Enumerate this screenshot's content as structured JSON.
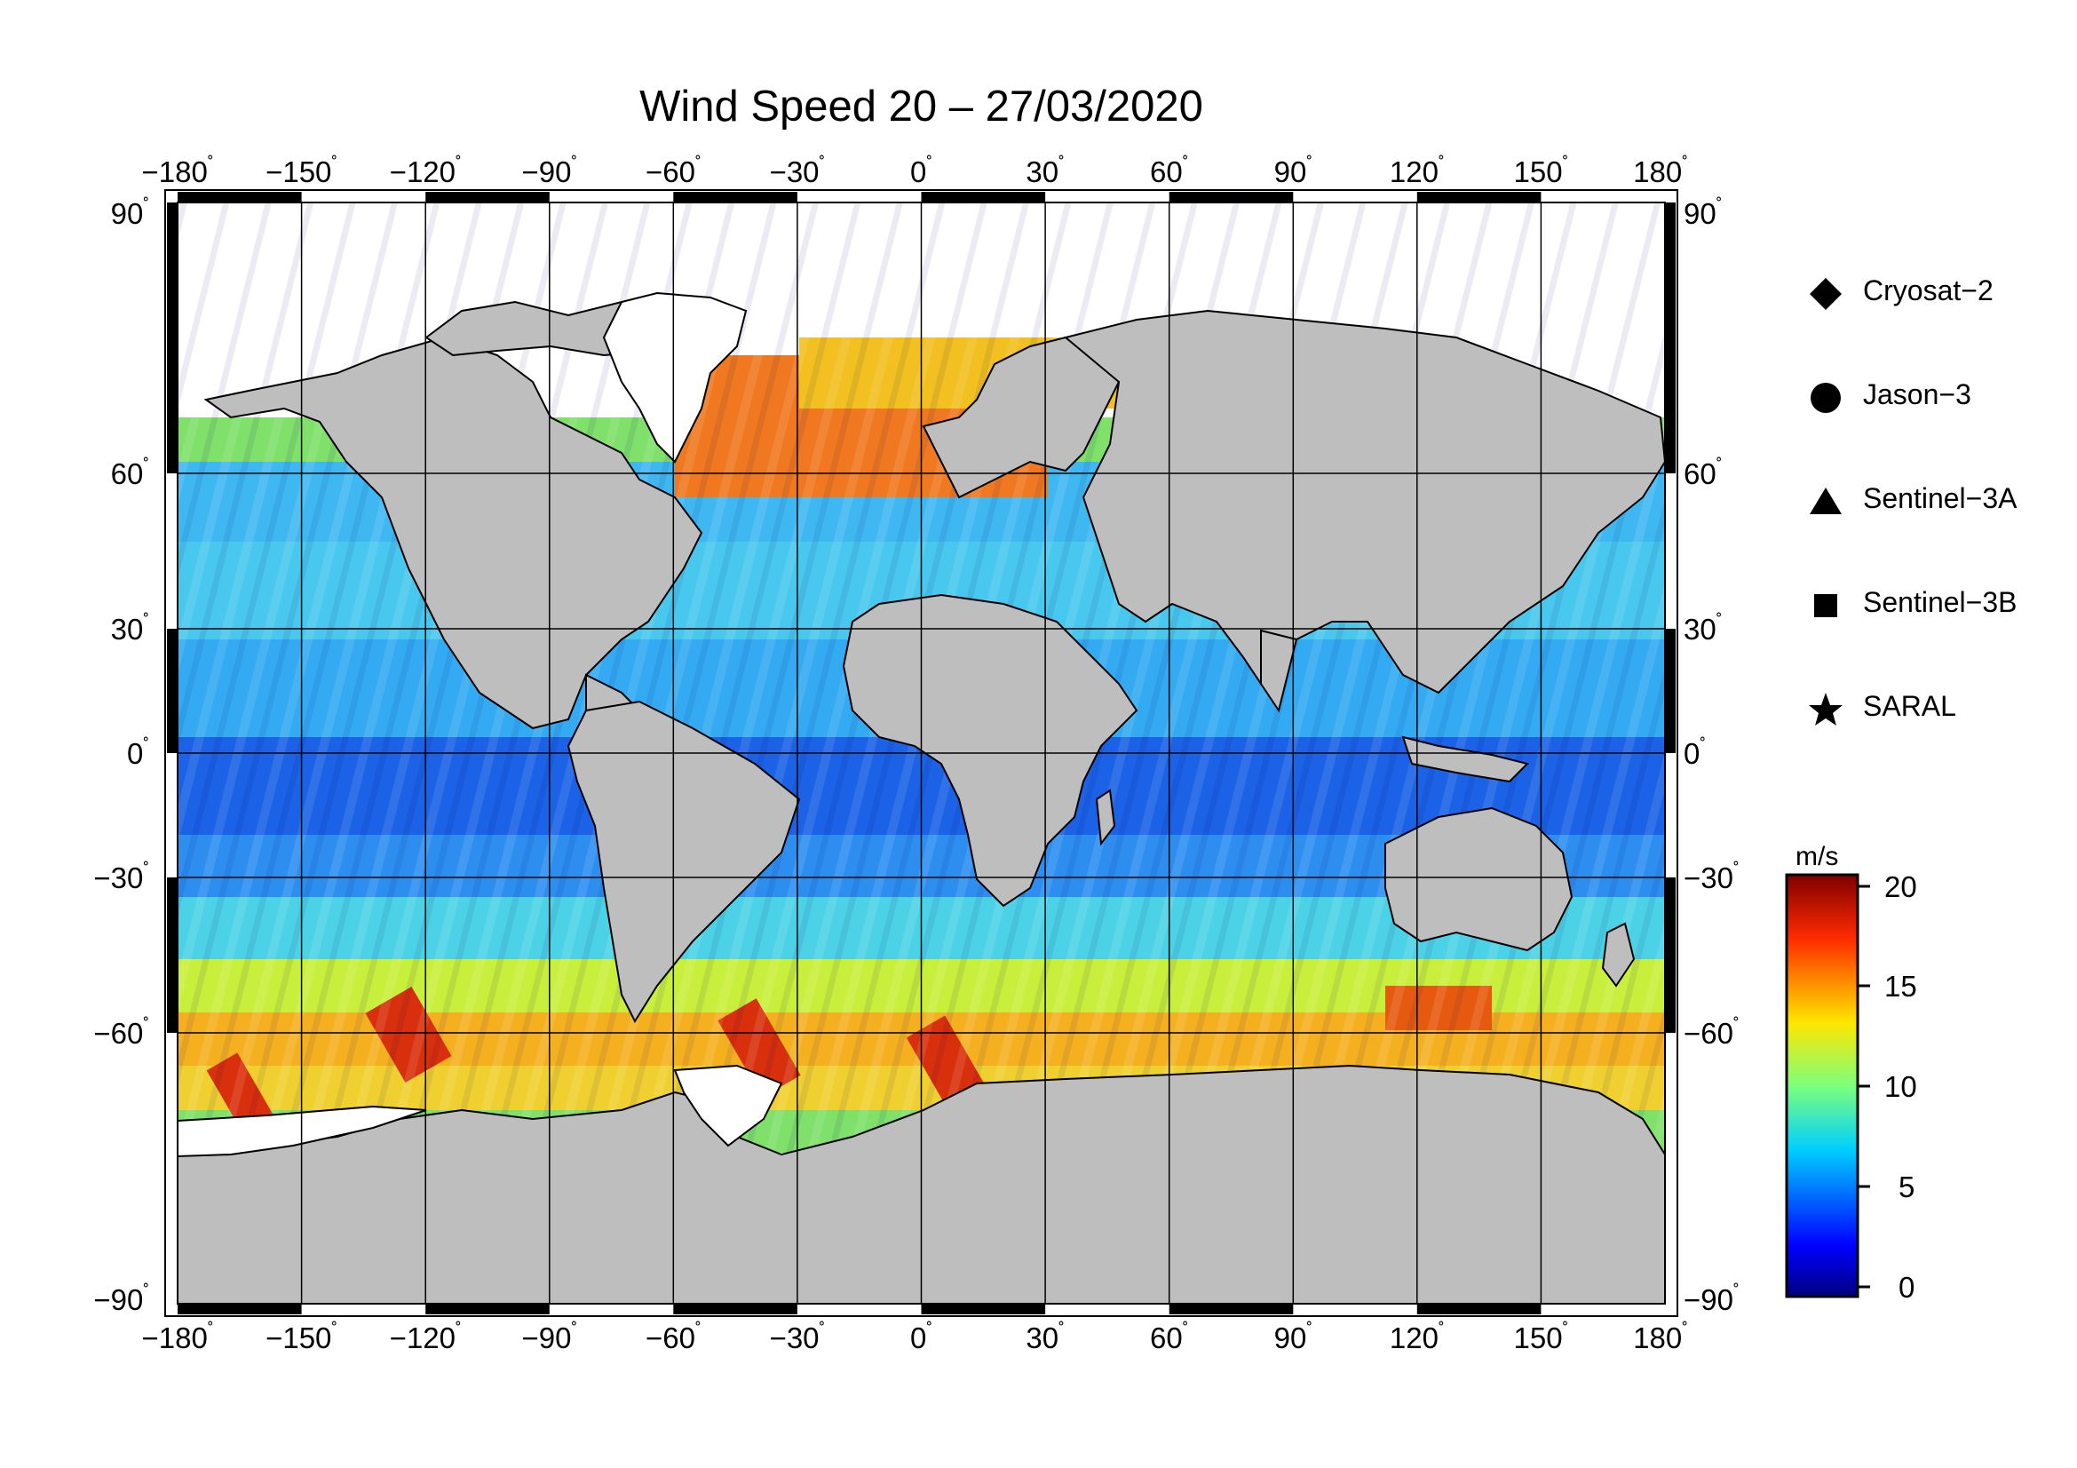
{
  "title": "Wind Speed 20 – 27/03/2020",
  "axes": {
    "x_ticks": [
      "−180",
      "−150",
      "−120",
      "−90",
      "−60",
      "−30",
      "0",
      "30",
      "60",
      "90",
      "120",
      "150",
      "180"
    ],
    "y_ticks": [
      "90",
      "60",
      "30",
      "0",
      "−30",
      "−60",
      "−90"
    ],
    "degree_symbol": "˚"
  },
  "legend": {
    "items": [
      {
        "label": "Cryosat−2",
        "symbol": "diamond-icon"
      },
      {
        "label": "Jason−3",
        "symbol": "circle-icon"
      },
      {
        "label": "Sentinel−3A",
        "symbol": "triangle-icon"
      },
      {
        "label": "Sentinel−3B",
        "symbol": "square-icon"
      },
      {
        "label": "SARAL",
        "symbol": "star-icon"
      }
    ]
  },
  "colorbar": {
    "unit": "m/s",
    "ticks": [
      "20",
      "15",
      "10",
      "5",
      "0"
    ],
    "min": 0,
    "max": 20
  },
  "colors": {
    "land": "#bebebe",
    "ice": "#ffffff",
    "low_wind": "#0a1fd9",
    "mid_wind": "#3cc8f0",
    "high_wind": "#e22a10"
  }
}
